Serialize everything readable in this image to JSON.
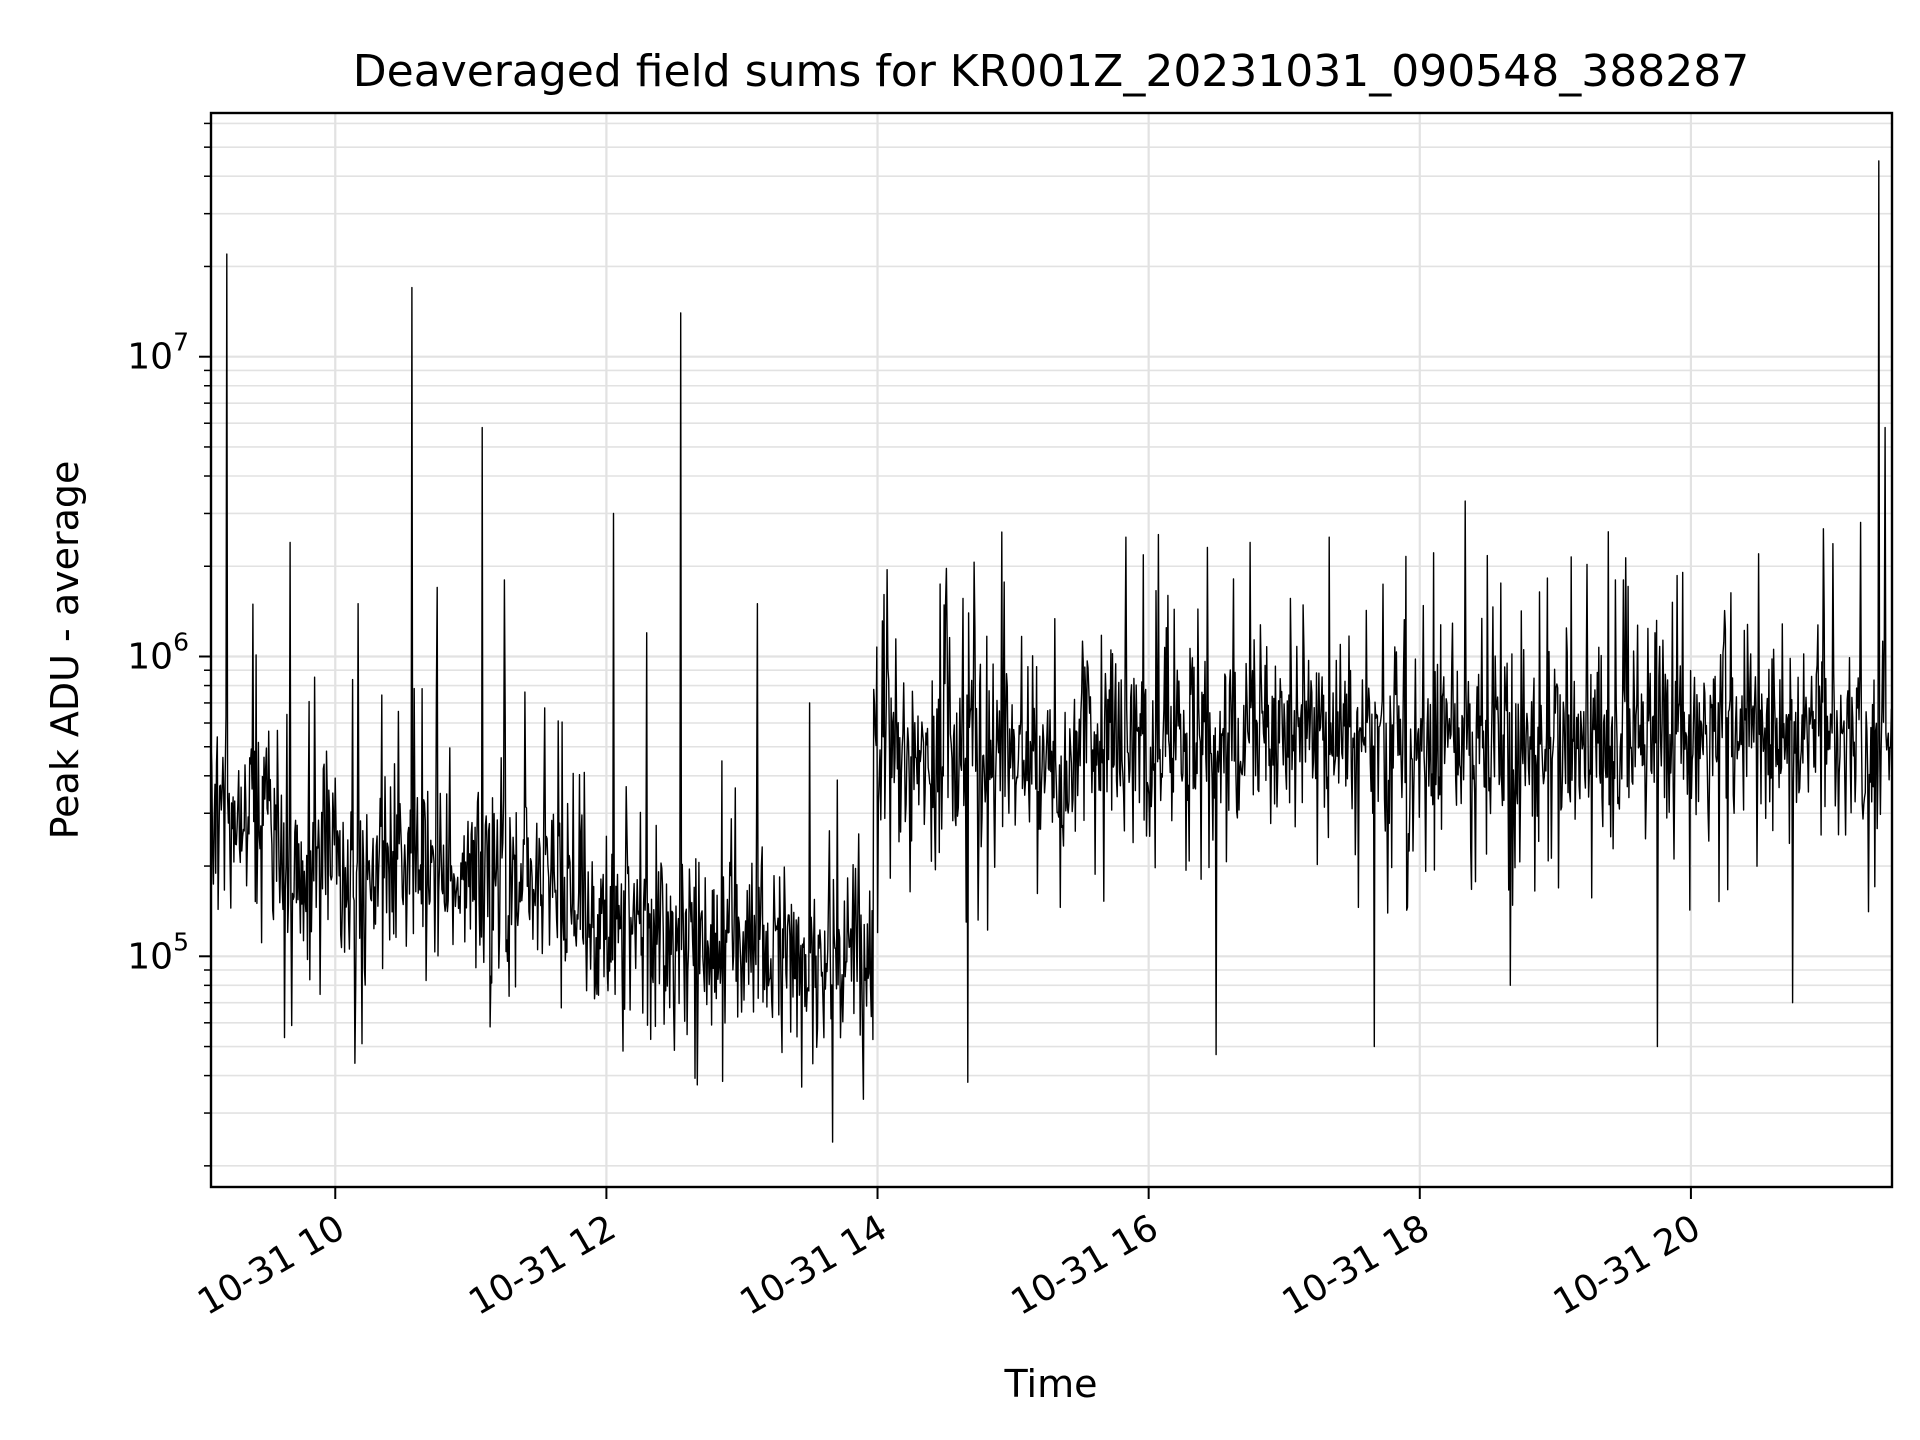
{
  "chart_data": {
    "type": "line",
    "title": "Deaveraged field sums for KR001Z_20231031_090548_388287",
    "xlabel": "Time",
    "ylabel": "Peak ADU - average",
    "yscale": "log",
    "xlim": [
      "10-31 09:05",
      "10-31 21:29"
    ],
    "ylim": [
      17000,
      65000000
    ],
    "grid": true,
    "line_color": "#000000",
    "x_ticks": [
      "10-31 10",
      "10-31 12",
      "10-31 14",
      "10-31 16",
      "10-31 18",
      "10-31 20"
    ],
    "y_ticks": [
      {
        "base": "10",
        "exp": "5"
      },
      {
        "base": "10",
        "exp": "6"
      },
      {
        "base": "10",
        "exp": "7"
      }
    ],
    "series": [
      {
        "values_sampled": [
          [
            "10-31 09:05",
            400000
          ],
          [
            "10-31 09:10",
            220000
          ],
          [
            "10-31 09:12",
            22000000
          ],
          [
            "10-31 09:15",
            300000
          ],
          [
            "10-31 09:20",
            100000
          ],
          [
            "10-31 09:30",
            500000
          ],
          [
            "10-31 09:40",
            2400000
          ],
          [
            "10-31 09:45",
            250000
          ],
          [
            "10-31 09:50",
            180000
          ],
          [
            "10-31 10:00",
            210000
          ],
          [
            "10-31 10:10",
            1500000
          ],
          [
            "10-31 10:20",
            200000
          ],
          [
            "10-31 10:30",
            80000
          ],
          [
            "10-31 10:34",
            17000000
          ],
          [
            "10-31 10:40",
            200000
          ],
          [
            "10-31 10:45",
            1700000
          ],
          [
            "10-31 11:00",
            150000
          ],
          [
            "10-31 11:05",
            5800000
          ],
          [
            "10-31 11:15",
            1800000
          ],
          [
            "10-31 11:30",
            160000
          ],
          [
            "10-31 11:45",
            120000
          ],
          [
            "10-31 12:00",
            180000
          ],
          [
            "10-31 12:03",
            3000000
          ],
          [
            "10-31 12:15",
            90000
          ],
          [
            "10-31 12:18",
            1200000
          ],
          [
            "10-31 12:30",
            70000
          ],
          [
            "10-31 12:33",
            14000000
          ],
          [
            "10-31 12:45",
            60000
          ],
          [
            "10-31 13:00",
            80000
          ],
          [
            "10-31 13:07",
            1500000
          ],
          [
            "10-31 13:20",
            100000
          ],
          [
            "10-31 13:30",
            700000
          ],
          [
            "10-31 13:40",
            24000
          ],
          [
            "10-31 13:50",
            100000
          ],
          [
            "10-31 14:00",
            120000
          ],
          [
            "10-31 14:05",
            600000
          ],
          [
            "10-31 14:20",
            400000
          ],
          [
            "10-31 14:40",
            38000
          ],
          [
            "10-31 14:55",
            2600000
          ],
          [
            "10-31 15:10",
            500000
          ],
          [
            "10-31 15:30",
            300000
          ],
          [
            "10-31 15:50",
            2500000
          ],
          [
            "10-31 16:00",
            400000
          ],
          [
            "10-31 16:30",
            47000
          ],
          [
            "10-31 16:45",
            2400000
          ],
          [
            "10-31 17:00",
            500000
          ],
          [
            "10-31 17:20",
            2500000
          ],
          [
            "10-31 17:40",
            50000
          ],
          [
            "10-31 18:00",
            600000
          ],
          [
            "10-31 18:20",
            3300000
          ],
          [
            "10-31 18:40",
            80000
          ],
          [
            "10-31 19:00",
            500000
          ],
          [
            "10-31 19:30",
            1800000
          ],
          [
            "10-31 19:45",
            50000
          ],
          [
            "10-31 20:00",
            600000
          ],
          [
            "10-31 20:30",
            2200000
          ],
          [
            "10-31 20:45",
            70000
          ],
          [
            "10-31 21:00",
            500000
          ],
          [
            "10-31 21:15",
            2800000
          ],
          [
            "10-31 21:23",
            45000000
          ],
          [
            "10-31 21:26",
            5800000
          ],
          [
            "10-31 21:29",
            500000
          ]
        ]
      }
    ]
  }
}
